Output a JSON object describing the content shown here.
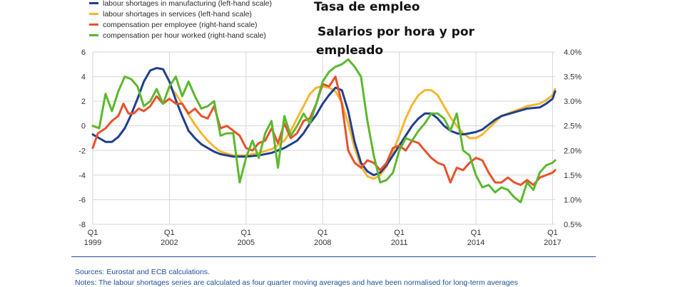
{
  "overlay": {
    "line1": "Tasa de empleo",
    "line2": "Salarios por hora y por",
    "line3": "empleado"
  },
  "footer": {
    "sources": "Sources: Eurostat and ECB calculations.",
    "notes": "Notes: The labour shortages series are calculated as four quarter moving averages and have been normalised for long-term averages"
  },
  "chart_data": {
    "type": "line",
    "x_ticks": [
      {
        "x": 1999,
        "q": "Q1",
        "y": "1999"
      },
      {
        "x": 2002,
        "q": "Q1",
        "y": "2002"
      },
      {
        "x": 2005,
        "q": "Q1",
        "y": "2005"
      },
      {
        "x": 2008,
        "q": "Q1",
        "y": "2008"
      },
      {
        "x": 2011,
        "q": "Q1",
        "y": "2011"
      },
      {
        "x": 2014,
        "q": "Q1",
        "y": "2014"
      },
      {
        "x": 2017,
        "q": "Q1",
        "y": "2017"
      }
    ],
    "xlim": [
      1999,
      2017.1
    ],
    "left_axis": {
      "ylim": [
        -8,
        6
      ],
      "ticks": [
        "6",
        "4",
        "2",
        "0",
        "-2",
        "-4",
        "-6",
        "-8"
      ]
    },
    "right_axis": {
      "ylim": [
        0.5,
        4.0
      ],
      "ticks": [
        "4.0%",
        "3.5%",
        "3.0%",
        "2.5%",
        "2.0%",
        "1.5%",
        "1.0%",
        "0.5%"
      ]
    },
    "grid": true,
    "legend_position": "top-left",
    "series": [
      {
        "name": "labour shortages in manufacturing (left-hand scale)",
        "axis": "left",
        "color": "#1f3f8f",
        "points": [
          [
            1999.0,
            -0.7
          ],
          [
            1999.25,
            -1.0
          ],
          [
            1999.5,
            -1.3
          ],
          [
            1999.75,
            -1.3
          ],
          [
            2000.0,
            -0.9
          ],
          [
            2000.25,
            -0.2
          ],
          [
            2000.5,
            0.9
          ],
          [
            2000.75,
            2.2
          ],
          [
            2001.0,
            3.6
          ],
          [
            2001.25,
            4.5
          ],
          [
            2001.5,
            4.7
          ],
          [
            2001.75,
            4.6
          ],
          [
            2002.0,
            3.6
          ],
          [
            2002.25,
            2.1
          ],
          [
            2002.5,
            0.8
          ],
          [
            2002.75,
            -0.4
          ],
          [
            2003.0,
            -1.0
          ],
          [
            2003.25,
            -1.5
          ],
          [
            2003.5,
            -1.8
          ],
          [
            2003.75,
            -2.1
          ],
          [
            2004.0,
            -2.3
          ],
          [
            2004.5,
            -2.5
          ],
          [
            2005.0,
            -2.5
          ],
          [
            2005.5,
            -2.4
          ],
          [
            2006.0,
            -2.2
          ],
          [
            2006.5,
            -1.8
          ],
          [
            2007.0,
            -1.2
          ],
          [
            2007.25,
            -0.6
          ],
          [
            2007.5,
            0.2
          ],
          [
            2007.75,
            0.9
          ],
          [
            2008.0,
            1.8
          ],
          [
            2008.25,
            2.5
          ],
          [
            2008.5,
            3.1
          ],
          [
            2008.75,
            2.9
          ],
          [
            2009.0,
            1.2
          ],
          [
            2009.25,
            -1.3
          ],
          [
            2009.5,
            -3.0
          ],
          [
            2009.75,
            -3.7
          ],
          [
            2010.0,
            -4.0
          ],
          [
            2010.25,
            -3.8
          ],
          [
            2010.5,
            -3.2
          ],
          [
            2010.75,
            -2.4
          ],
          [
            2011.0,
            -1.6
          ],
          [
            2011.25,
            -0.8
          ],
          [
            2011.5,
            0.0
          ],
          [
            2011.75,
            0.6
          ],
          [
            2012.0,
            1.0
          ],
          [
            2012.25,
            1.0
          ],
          [
            2012.5,
            0.6
          ],
          [
            2012.75,
            0.0
          ],
          [
            2013.0,
            -0.4
          ],
          [
            2013.25,
            -0.6
          ],
          [
            2013.5,
            -0.7
          ],
          [
            2013.75,
            -0.6
          ],
          [
            2014.0,
            -0.5
          ],
          [
            2014.25,
            -0.3
          ],
          [
            2014.5,
            0.1
          ],
          [
            2014.75,
            0.5
          ],
          [
            2015.0,
            0.8
          ],
          [
            2015.5,
            1.1
          ],
          [
            2016.0,
            1.4
          ],
          [
            2016.5,
            1.5
          ],
          [
            2016.75,
            1.8
          ],
          [
            2017.0,
            2.2
          ],
          [
            2017.1,
            2.8
          ]
        ]
      },
      {
        "name": "labour shortages in services (left-hand scale)",
        "axis": "left",
        "color": "#f6b72e",
        "points": [
          [
            2002.0,
            3.2
          ],
          [
            2002.25,
            2.6
          ],
          [
            2002.5,
            1.8
          ],
          [
            2002.75,
            0.9
          ],
          [
            2003.0,
            0.1
          ],
          [
            2003.25,
            -0.6
          ],
          [
            2003.5,
            -1.2
          ],
          [
            2003.75,
            -1.7
          ],
          [
            2004.0,
            -2.1
          ],
          [
            2004.5,
            -2.4
          ],
          [
            2005.0,
            -2.4
          ],
          [
            2005.5,
            -2.2
          ],
          [
            2006.0,
            -1.9
          ],
          [
            2006.5,
            -1.2
          ],
          [
            2006.75,
            -0.4
          ],
          [
            2007.0,
            0.6
          ],
          [
            2007.25,
            1.6
          ],
          [
            2007.5,
            2.6
          ],
          [
            2007.75,
            3.1
          ],
          [
            2008.0,
            3.2
          ],
          [
            2008.25,
            3.1
          ],
          [
            2008.5,
            2.8
          ],
          [
            2008.75,
            1.9
          ],
          [
            2009.0,
            0.2
          ],
          [
            2009.25,
            -1.8
          ],
          [
            2009.5,
            -3.3
          ],
          [
            2009.75,
            -4.1
          ],
          [
            2010.0,
            -4.3
          ],
          [
            2010.25,
            -4.0
          ],
          [
            2010.5,
            -3.3
          ],
          [
            2010.75,
            -2.1
          ],
          [
            2011.0,
            -0.8
          ],
          [
            2011.25,
            0.6
          ],
          [
            2011.5,
            1.7
          ],
          [
            2011.75,
            2.5
          ],
          [
            2012.0,
            2.9
          ],
          [
            2012.25,
            2.9
          ],
          [
            2012.5,
            2.5
          ],
          [
            2012.75,
            1.6
          ],
          [
            2013.0,
            0.7
          ],
          [
            2013.25,
            0.0
          ],
          [
            2013.5,
            -0.6
          ],
          [
            2013.75,
            -1.0
          ],
          [
            2014.0,
            -1.0
          ],
          [
            2014.25,
            -0.7
          ],
          [
            2014.5,
            -0.2
          ],
          [
            2014.75,
            0.3
          ],
          [
            2015.0,
            0.8
          ],
          [
            2015.5,
            1.2
          ],
          [
            2016.0,
            1.6
          ],
          [
            2016.5,
            1.8
          ],
          [
            2016.75,
            2.1
          ],
          [
            2017.0,
            2.5
          ],
          [
            2017.1,
            3.0
          ]
        ]
      },
      {
        "name": "compensation per employee (right-hand scale)",
        "axis": "right",
        "color": "#e8522b",
        "points": [
          [
            1999.0,
            2.05
          ],
          [
            1999.2,
            2.35
          ],
          [
            1999.5,
            2.45
          ],
          [
            1999.75,
            2.6
          ],
          [
            2000.0,
            2.7
          ],
          [
            2000.2,
            2.95
          ],
          [
            2000.4,
            2.75
          ],
          [
            2000.6,
            2.75
          ],
          [
            2000.8,
            2.85
          ],
          [
            2001.0,
            2.8
          ],
          [
            2001.25,
            2.9
          ],
          [
            2001.5,
            3.1
          ],
          [
            2001.75,
            2.95
          ],
          [
            2002.0,
            3.05
          ],
          [
            2002.25,
            2.95
          ],
          [
            2002.5,
            2.95
          ],
          [
            2002.75,
            2.75
          ],
          [
            2003.0,
            2.85
          ],
          [
            2003.25,
            2.7
          ],
          [
            2003.5,
            2.65
          ],
          [
            2003.75,
            2.9
          ],
          [
            2004.0,
            2.45
          ],
          [
            2004.25,
            2.5
          ],
          [
            2004.5,
            2.4
          ],
          [
            2004.75,
            2.3
          ],
          [
            2005.0,
            2.05
          ],
          [
            2005.25,
            2.0
          ],
          [
            2005.5,
            2.15
          ],
          [
            2005.75,
            2.2
          ],
          [
            2006.0,
            2.45
          ],
          [
            2006.25,
            2.15
          ],
          [
            2006.5,
            2.55
          ],
          [
            2006.75,
            2.25
          ],
          [
            2007.0,
            2.35
          ],
          [
            2007.25,
            2.6
          ],
          [
            2007.5,
            2.65
          ],
          [
            2007.75,
            2.95
          ],
          [
            2008.0,
            3.35
          ],
          [
            2008.25,
            3.3
          ],
          [
            2008.5,
            3.5
          ],
          [
            2008.75,
            2.95
          ],
          [
            2009.0,
            2.0
          ],
          [
            2009.25,
            1.75
          ],
          [
            2009.5,
            1.65
          ],
          [
            2009.75,
            1.8
          ],
          [
            2010.0,
            1.75
          ],
          [
            2010.25,
            1.6
          ],
          [
            2010.5,
            1.75
          ],
          [
            2010.75,
            2.05
          ],
          [
            2011.0,
            2.1
          ],
          [
            2011.25,
            2.0
          ],
          [
            2011.5,
            2.2
          ],
          [
            2011.75,
            2.15
          ],
          [
            2012.0,
            2.0
          ],
          [
            2012.25,
            1.85
          ],
          [
            2012.5,
            1.75
          ],
          [
            2012.75,
            1.7
          ],
          [
            2013.0,
            1.35
          ],
          [
            2013.25,
            1.65
          ],
          [
            2013.5,
            1.6
          ],
          [
            2013.75,
            1.75
          ],
          [
            2014.0,
            1.85
          ],
          [
            2014.25,
            1.8
          ],
          [
            2014.5,
            1.55
          ],
          [
            2014.75,
            1.35
          ],
          [
            2015.0,
            1.35
          ],
          [
            2015.25,
            1.45
          ],
          [
            2015.5,
            1.35
          ],
          [
            2015.75,
            1.3
          ],
          [
            2016.0,
            1.4
          ],
          [
            2016.25,
            1.3
          ],
          [
            2016.5,
            1.45
          ],
          [
            2016.75,
            1.5
          ],
          [
            2017.0,
            1.55
          ],
          [
            2017.1,
            1.6
          ]
        ]
      },
      {
        "name": "compensation per hour worked (right-hand scale)",
        "axis": "right",
        "color": "#5cb82d",
        "points": [
          [
            1999.0,
            2.5
          ],
          [
            1999.25,
            2.45
          ],
          [
            1999.5,
            3.15
          ],
          [
            1999.75,
            2.8
          ],
          [
            2000.0,
            3.2
          ],
          [
            2000.25,
            3.5
          ],
          [
            2000.5,
            3.45
          ],
          [
            2000.75,
            3.3
          ],
          [
            2001.0,
            2.9
          ],
          [
            2001.25,
            3.0
          ],
          [
            2001.5,
            3.25
          ],
          [
            2001.75,
            2.95
          ],
          [
            2002.0,
            3.3
          ],
          [
            2002.25,
            3.5
          ],
          [
            2002.5,
            3.1
          ],
          [
            2002.75,
            3.4
          ],
          [
            2003.0,
            3.1
          ],
          [
            2003.25,
            2.85
          ],
          [
            2003.5,
            2.9
          ],
          [
            2003.75,
            3.0
          ],
          [
            2004.0,
            2.3
          ],
          [
            2004.25,
            2.35
          ],
          [
            2004.5,
            2.35
          ],
          [
            2004.75,
            1.35
          ],
          [
            2005.0,
            1.85
          ],
          [
            2005.25,
            2.2
          ],
          [
            2005.5,
            1.85
          ],
          [
            2005.75,
            2.35
          ],
          [
            2006.0,
            2.6
          ],
          [
            2006.25,
            1.65
          ],
          [
            2006.5,
            2.7
          ],
          [
            2006.75,
            2.3
          ],
          [
            2007.0,
            2.5
          ],
          [
            2007.25,
            2.75
          ],
          [
            2007.5,
            2.55
          ],
          [
            2007.75,
            2.95
          ],
          [
            2008.0,
            3.4
          ],
          [
            2008.25,
            3.6
          ],
          [
            2008.5,
            3.7
          ],
          [
            2008.75,
            3.75
          ],
          [
            2009.0,
            3.85
          ],
          [
            2009.25,
            3.7
          ],
          [
            2009.5,
            3.5
          ],
          [
            2009.75,
            2.6
          ],
          [
            2010.0,
            1.9
          ],
          [
            2010.25,
            1.35
          ],
          [
            2010.5,
            1.4
          ],
          [
            2010.75,
            1.55
          ],
          [
            2011.0,
            2.0
          ],
          [
            2011.25,
            2.25
          ],
          [
            2011.5,
            2.2
          ],
          [
            2011.75,
            2.4
          ],
          [
            2012.0,
            2.55
          ],
          [
            2012.25,
            2.75
          ],
          [
            2012.5,
            2.75
          ],
          [
            2012.75,
            2.65
          ],
          [
            2013.0,
            2.4
          ],
          [
            2013.25,
            2.75
          ],
          [
            2013.5,
            2.0
          ],
          [
            2013.75,
            1.9
          ],
          [
            2014.0,
            1.5
          ],
          [
            2014.25,
            1.25
          ],
          [
            2014.5,
            1.3
          ],
          [
            2014.75,
            1.15
          ],
          [
            2015.0,
            1.25
          ],
          [
            2015.25,
            1.2
          ],
          [
            2015.5,
            1.05
          ],
          [
            2015.75,
            0.95
          ],
          [
            2016.0,
            1.35
          ],
          [
            2016.25,
            1.2
          ],
          [
            2016.5,
            1.55
          ],
          [
            2016.75,
            1.7
          ],
          [
            2017.0,
            1.75
          ],
          [
            2017.1,
            1.8
          ]
        ]
      }
    ]
  }
}
